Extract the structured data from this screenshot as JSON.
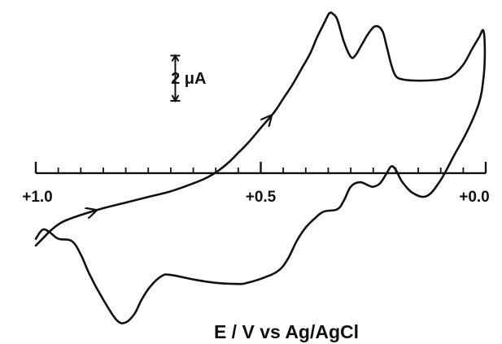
{
  "chart_data": {
    "type": "line",
    "title": "",
    "xlabel": "E / V vs Ag/AgCl",
    "ylabel": "",
    "x_reversed": true,
    "xlim": [
      1.0,
      0.0
    ],
    "ylim": [
      -6.8,
      7.3
    ],
    "grid": false,
    "x_tick_labels": [
      {
        "value": 1.0,
        "label": "+1.0"
      },
      {
        "value": 0.5,
        "label": "+0.5"
      },
      {
        "value": 0.0,
        "label": "+0.0"
      }
    ],
    "minor_ticks": [
      0.95,
      0.9,
      0.85,
      0.8,
      0.75,
      0.7,
      0.65,
      0.6,
      0.55,
      0.45,
      0.4,
      0.35,
      0.3,
      0.25,
      0.2,
      0.15,
      0.1,
      0.05
    ],
    "scale_bar": {
      "label": "2 μA",
      "value": 2,
      "anchor_x": 0.69,
      "anchor_y": 4.2
    },
    "series": [
      {
        "x": [
          1.0,
          0.985,
          0.965,
          0.94,
          0.9,
          0.85,
          0.8,
          0.75,
          0.7,
          0.65,
          0.62,
          0.595,
          0.57,
          0.55,
          0.53,
          0.5,
          0.47,
          0.45,
          0.43,
          0.41,
          0.39,
          0.375,
          0.36,
          0.35,
          0.345,
          0.34,
          0.33,
          0.315,
          0.3,
          0.29,
          0.275,
          0.26,
          0.245,
          0.23,
          0.22,
          0.21,
          0.2,
          0.185,
          0.16,
          0.13,
          0.1,
          0.075,
          0.05,
          0.03,
          0.015,
          0.005,
          0.002,
          0.005,
          0.015,
          0.04,
          0.07,
          0.1,
          0.13,
          0.16,
          0.185,
          0.2,
          0.21,
          0.22,
          0.235,
          0.25,
          0.26,
          0.28,
          0.3,
          0.315,
          0.33,
          0.36,
          0.38,
          0.4,
          0.42,
          0.44,
          0.46,
          0.49,
          0.53,
          0.55,
          0.6,
          0.65,
          0.7,
          0.72,
          0.745,
          0.765,
          0.78,
          0.8,
          0.82,
          0.85,
          0.88,
          0.9,
          0.92,
          0.95,
          0.97,
          0.985,
          1.0
        ],
        "y": [
          -3.2,
          -2.9,
          -2.5,
          -2.15,
          -1.85,
          -1.55,
          -1.3,
          -1.05,
          -0.8,
          -0.45,
          -0.2,
          0.1,
          0.5,
          0.9,
          1.3,
          2.0,
          2.7,
          3.3,
          3.9,
          4.6,
          5.3,
          6.0,
          6.6,
          7.0,
          7.1,
          7.05,
          6.8,
          5.8,
          5.15,
          5.2,
          5.7,
          6.2,
          6.5,
          6.3,
          5.6,
          4.8,
          4.3,
          4.15,
          4.1,
          4.1,
          4.15,
          4.3,
          4.8,
          5.5,
          6.0,
          6.3,
          5.3,
          4.2,
          3.1,
          1.9,
          0.8,
          -0.3,
          -1.0,
          -0.9,
          -0.4,
          0.15,
          0.3,
          0.0,
          -0.45,
          -0.6,
          -0.55,
          -0.4,
          -0.6,
          -1.2,
          -1.6,
          -1.7,
          -2.0,
          -2.4,
          -3.0,
          -3.8,
          -4.3,
          -4.6,
          -4.85,
          -4.9,
          -4.85,
          -4.7,
          -4.5,
          -4.55,
          -5.0,
          -5.6,
          -6.2,
          -6.6,
          -6.5,
          -5.6,
          -4.5,
          -3.6,
          -3.0,
          -2.9,
          -2.6,
          -2.5,
          -2.9
        ]
      }
    ]
  }
}
